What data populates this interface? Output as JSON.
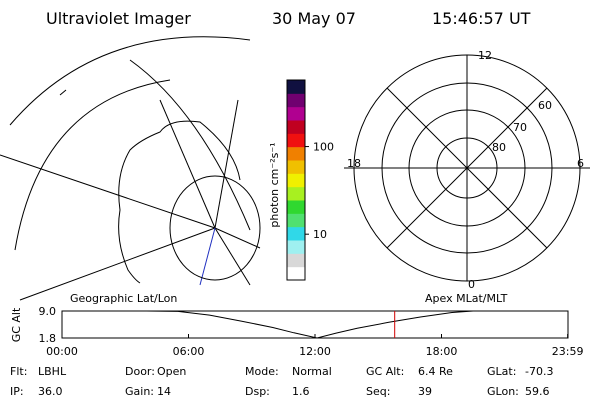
{
  "header": {
    "title": "Ultraviolet Imager",
    "date": "30 May 07",
    "time": "15:46:57 UT"
  },
  "colorbar": {
    "label": "photon cm⁻²s⁻¹",
    "lim": [
      3,
      575
    ],
    "log": true,
    "ticks": [
      10,
      100
    ],
    "colors": [
      "#ffffff",
      "#d8d8d8",
      "#9ff0f0",
      "#30d8e8",
      "#50e070",
      "#30d830",
      "#a8f020",
      "#f0f000",
      "#f0c000",
      "#f08000",
      "#f01010",
      "#c00020",
      "#b00090",
      "#700070",
      "#101040"
    ]
  },
  "map": {
    "label": "Geographic Lat/Lon"
  },
  "polar": {
    "label": "Apex MLat/MLT",
    "mlt_labels": {
      "top": "12",
      "left": "18",
      "right": "6",
      "bottom": "0"
    },
    "lat_labels": [
      "60",
      "70",
      "80"
    ]
  },
  "timeline": {
    "ylabel": "GC Alt",
    "xlim": [
      0,
      24
    ],
    "ylim": [
      1.8,
      9.0
    ],
    "xticks": [
      {
        "value": 0,
        "label": "00:00"
      },
      {
        "value": 6,
        "label": "06:00"
      },
      {
        "value": 12,
        "label": "12:00"
      },
      {
        "value": 18,
        "label": "18:00"
      },
      {
        "value": 23.983,
        "label": "23:59"
      }
    ],
    "yticks": [
      {
        "value": 9.0,
        "label": "9.0"
      },
      1.8
    ],
    "x": [
      0,
      2,
      4,
      5.5,
      7,
      8.5,
      10,
      11,
      12.1,
      13,
      14,
      15.5,
      17,
      18.5,
      19.5,
      22,
      24
    ],
    "values": [
      9.0,
      9.0,
      9.0,
      8.9,
      7.9,
      6.3,
      4.6,
      3.2,
      1.8,
      3.1,
      4.4,
      6.0,
      7.4,
      8.6,
      9.0,
      9.0,
      9.0
    ],
    "marker": 15.78,
    "marker_color": "#d00000"
  },
  "footer": [
    [
      {
        "label": "Flt:",
        "value": "LBHL"
      },
      {
        "label": "Door:",
        "value": "Open"
      },
      {
        "label": "Mode:",
        "value": "Normal"
      },
      {
        "label": "GC Alt:",
        "value": "6.4 Re"
      },
      {
        "label": "GLat:",
        "value": "-70.3"
      }
    ],
    [
      {
        "label": "IP:",
        "value": "36.0"
      },
      {
        "label": "Gain:",
        "value": "14"
      },
      {
        "label": "Dsp:",
        "value": "1.6"
      },
      {
        "label": "Seq:",
        "value": "39"
      },
      {
        "label": "GLon:",
        "value": "59.6"
      }
    ]
  ]
}
